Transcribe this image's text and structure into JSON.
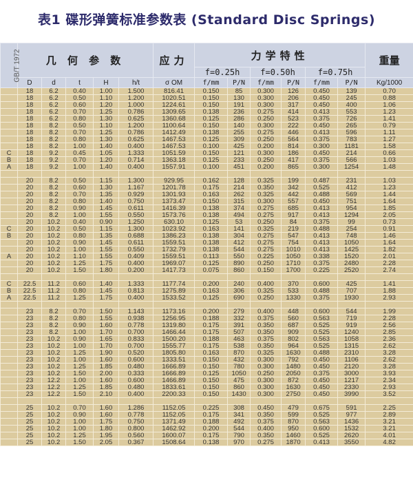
{
  "title": "表1  碟形弹簧标准参数表 (Standard Disc Springs)",
  "header": {
    "standard": "GB/T 1972",
    "geometry": "几 何 参 数",
    "stress": "应力",
    "mechanics": "力学特性",
    "weight": "重量",
    "f_groups": [
      "f=0.25h",
      "f=0.50h",
      "f=0.75h"
    ],
    "columns": [
      "D",
      "d",
      "t",
      "H",
      "h/t",
      "σ OM",
      "f/mm",
      "P/N",
      "f/mm",
      "P/N",
      "f/mm",
      "P/N",
      "Kg/1000"
    ]
  },
  "colors": {
    "title": "#2d2b6b",
    "header_bg": "#cdd3e2",
    "body_bg": "#dccb9f"
  },
  "rows": [
    [
      "",
      "18",
      "6.2",
      "0.40",
      "1.00",
      "1.500",
      "816.41",
      "0.150",
      "85",
      "0.300",
      "126",
      "0.450",
      "139",
      "0.70"
    ],
    [
      "",
      "18",
      "6.2",
      "0.50",
      "1.10",
      "1.200",
      "1020.51",
      "0.150",
      "130",
      "0.300",
      "206",
      "0.450",
      "245",
      "0.88"
    ],
    [
      "",
      "18",
      "6.2",
      "0.60",
      "1.20",
      "1.000",
      "1224.61",
      "0.150",
      "191",
      "0.300",
      "317",
      "0.450",
      "400",
      "1.06"
    ],
    [
      "",
      "18",
      "6.2",
      "0.70",
      "1.25",
      "0.786",
      "1309.65",
      "0.138",
      "236",
      "0.275",
      "414",
      "0.413",
      "553",
      "1.23"
    ],
    [
      "",
      "18",
      "6.2",
      "0.80",
      "1.30",
      "0.625",
      "1360.68",
      "0.125",
      "286",
      "0.250",
      "523",
      "0.375",
      "726",
      "1.41"
    ],
    [
      "",
      "18",
      "8.2",
      "0.50",
      "1.10",
      "1.200",
      "1100.64",
      "0.150",
      "140",
      "0.300",
      "222",
      "0.450",
      "265",
      "0.79"
    ],
    [
      "",
      "18",
      "8.2",
      "0.70",
      "1.25",
      "0.786",
      "1412.49",
      "0.138",
      "255",
      "0.275",
      "446",
      "0.413",
      "596",
      "1.11"
    ],
    [
      "",
      "18",
      "8.2",
      "0.80",
      "1.30",
      "0.625",
      "1467.53",
      "0.125",
      "309",
      "0.250",
      "564",
      "0.375",
      "783",
      "1.27"
    ],
    [
      "",
      "18",
      "8.2",
      "1.00",
      "1.40",
      "0.400",
      "1467.53",
      "0.100",
      "425",
      "0.200",
      "814",
      "0.300",
      "1181",
      "1.58"
    ],
    [
      "C",
      "18",
      "9.2",
      "0.45",
      "1.05",
      "1.333",
      "1051.59",
      "0.150",
      "121",
      "0.300",
      "186",
      "0.450",
      "214",
      "0.66"
    ],
    [
      "B",
      "18",
      "9.2",
      "0.70",
      "1.20",
      "0.714",
      "1363.18",
      "0.125",
      "233",
      "0.250",
      "417",
      "0.375",
      "566",
      "1.03"
    ],
    [
      "A",
      "18",
      "9.2",
      "1.00",
      "1.40",
      "0.400",
      "1557.91",
      "0.100",
      "451",
      "0.200",
      "865",
      "0.300",
      "1254",
      "1.48"
    ],
    [],
    [
      "",
      "20",
      "8.2",
      "0.50",
      "1.15",
      "1.300",
      "929.95",
      "0.162",
      "128",
      "0.325",
      "199",
      "0.487",
      "231",
      "1.03"
    ],
    [
      "",
      "20",
      "8.2",
      "0.60",
      "1.30",
      "1.167",
      "1201.78",
      "0.175",
      "214",
      "0.350",
      "342",
      "0.525",
      "412",
      "1.23"
    ],
    [
      "",
      "20",
      "8.2",
      "0.70",
      "1.35",
      "0.929",
      "1301.93",
      "0.163",
      "262",
      "0.325",
      "442",
      "0.488",
      "569",
      "1.44"
    ],
    [
      "",
      "20",
      "8.2",
      "0.80",
      "1.40",
      "0.750",
      "1373.47",
      "0.150",
      "315",
      "0.300",
      "557",
      "0.450",
      "751",
      "1.64"
    ],
    [
      "",
      "20",
      "8.2",
      "0.90",
      "1.45",
      "0.611",
      "1416.39",
      "0.138",
      "374",
      "0.275",
      "685",
      "0.413",
      "954",
      "1.85"
    ],
    [
      "",
      "20",
      "8.2",
      "1.00",
      "1.55",
      "0.550",
      "1573.76",
      "0.138",
      "494",
      "0.275",
      "917",
      "0.413",
      "1294",
      "2.05"
    ],
    [
      "",
      "20",
      "10.2",
      "0.40",
      "0.90",
      "1.250",
      "630.10",
      "0.125",
      "53",
      "0.250",
      "84",
      "0.375",
      "99",
      "0.73"
    ],
    [
      "C",
      "20",
      "10.2",
      "0.50",
      "1.15",
      "1.300",
      "1023.92",
      "0.163",
      "141",
      "0.325",
      "219",
      "0.488",
      "254",
      "0.91"
    ],
    [
      "B",
      "20",
      "10.2",
      "0.80",
      "1.35",
      "0.688",
      "1386.23",
      "0.138",
      "304",
      "0.275",
      "547",
      "0.413",
      "748",
      "1.46"
    ],
    [
      "",
      "20",
      "10.2",
      "0.90",
      "1.45",
      "0.611",
      "1559.51",
      "0.138",
      "412",
      "0.275",
      "754",
      "0.413",
      "1050",
      "1.64"
    ],
    [
      "",
      "20",
      "10.2",
      "1.00",
      "1.55",
      "0.550",
      "1732.79",
      "0.138",
      "544",
      "0.275",
      "1010",
      "0.413",
      "1425",
      "1.82"
    ],
    [
      "A",
      "20",
      "10.2",
      "1.10",
      "1.55",
      "0.409",
      "1559.51",
      "0.113",
      "550",
      "0.225",
      "1050",
      "0.338",
      "1520",
      "2.01"
    ],
    [
      "",
      "20",
      "10.2",
      "1.25",
      "1.75",
      "0.400",
      "1969.07",
      "0.125",
      "890",
      "0.250",
      "1710",
      "0.375",
      "2480",
      "2.28"
    ],
    [
      "",
      "20",
      "10.2",
      "1.50",
      "1.80",
      "0.200",
      "1417.73",
      "0.075",
      "860",
      "0.150",
      "1700",
      "0.225",
      "2520",
      "2.74"
    ],
    [],
    [
      "C",
      "22.5",
      "11.2",
      "0.60",
      "1.40",
      "1.333",
      "1177.74",
      "0.200",
      "240",
      "0.400",
      "370",
      "0.600",
      "425",
      "1.41"
    ],
    [
      "B",
      "22.5",
      "11.2",
      "0.80",
      "1.45",
      "0.813",
      "1275.89",
      "0.163",
      "306",
      "0.325",
      "533",
      "0.488",
      "707",
      "1.88"
    ],
    [
      "A",
      "22.5",
      "11.2",
      "1.25",
      "1.75",
      "0.400",
      "1533.52",
      "0.125",
      "690",
      "0.250",
      "1330",
      "0.375",
      "1930",
      "2.93"
    ],
    [],
    [
      "",
      "23",
      "8.2",
      "0.70",
      "1.50",
      "1.143",
      "1173.16",
      "0.200",
      "279",
      "0.400",
      "448",
      "0.600",
      "544",
      "1.99"
    ],
    [
      "",
      "23",
      "8.2",
      "0.80",
      "1.55",
      "0.938",
      "1256.95",
      "0.188",
      "332",
      "0.375",
      "560",
      "0.563",
      "719",
      "2.28"
    ],
    [
      "",
      "23",
      "8.2",
      "0.90",
      "1.60",
      "0.778",
      "1319.80",
      "0.175",
      "391",
      "0.350",
      "687",
      "0.525",
      "919",
      "2.56"
    ],
    [
      "",
      "23",
      "8.2",
      "1.00",
      "1.70",
      "0.700",
      "1466.44",
      "0.175",
      "507",
      "0.350",
      "909",
      "0.525",
      "1240",
      "2.85"
    ],
    [
      "",
      "23",
      "10.2",
      "0.90",
      "1.65",
      "0.833",
      "1500.20",
      "0.188",
      "463",
      "0.375",
      "802",
      "0.563",
      "1058",
      "2.36"
    ],
    [
      "",
      "23",
      "10.2",
      "1.00",
      "1.70",
      "0.700",
      "1555.77",
      "0.175",
      "538",
      "0.350",
      "964",
      "0.525",
      "1315",
      "2.62"
    ],
    [
      "",
      "23",
      "10.2",
      "1.25",
      "1.90",
      "0.520",
      "1805.80",
      "0.163",
      "870",
      "0.325",
      "1630",
      "0.488",
      "2310",
      "3.28"
    ],
    [
      "",
      "23",
      "10.2",
      "1.00",
      "1.60",
      "0.600",
      "1333.51",
      "0.150",
      "432",
      "0.300",
      "792",
      "0.450",
      "1106",
      "2.62"
    ],
    [
      "",
      "23",
      "10.2",
      "1.25",
      "1.85",
      "0.480",
      "1666.89",
      "0.150",
      "780",
      "0.300",
      "1480",
      "0.450",
      "2120",
      "3.28"
    ],
    [
      "",
      "23",
      "10.2",
      "1.50",
      "2.00",
      "0.333",
      "1666.89",
      "0.125",
      "1050",
      "0.250",
      "2050",
      "0.375",
      "3000",
      "3.93"
    ],
    [
      "",
      "23",
      "12.2",
      "1.00",
      "1.60",
      "0.600",
      "1466.89",
      "0.150",
      "475",
      "0.300",
      "872",
      "0.450",
      "1217",
      "2.34"
    ],
    [
      "",
      "23",
      "12.2",
      "1.25",
      "1.85",
      "0.480",
      "1833.61",
      "0.150",
      "860",
      "0.300",
      "1630",
      "0.450",
      "2330",
      "2.93"
    ],
    [
      "",
      "23",
      "12.2",
      "1.50",
      "2.10",
      "0.400",
      "2200.33",
      "0.150",
      "1430",
      "0.300",
      "2750",
      "0.450",
      "3990",
      "3.52"
    ],
    [],
    [
      "",
      "25",
      "10.2",
      "0.70",
      "1.60",
      "1.286",
      "1152.05",
      "0.225",
      "308",
      "0.450",
      "479",
      "0.675",
      "591",
      "2.25"
    ],
    [
      "",
      "25",
      "10.2",
      "0.90",
      "1.60",
      "0.778",
      "1152.05",
      "0.175",
      "341",
      "0.350",
      "599",
      "0.525",
      "977",
      "2.89"
    ],
    [
      "",
      "25",
      "10.2",
      "1.00",
      "1.75",
      "0.750",
      "1371.49",
      "0.188",
      "492",
      "0.375",
      "870",
      "0.563",
      "1436",
      "3.21"
    ],
    [
      "",
      "25",
      "10.2",
      "1.00",
      "1.80",
      "0.800",
      "1462.92",
      "0.200",
      "544",
      "0.400",
      "950",
      "0.600",
      "1532",
      "3.21"
    ],
    [
      "",
      "25",
      "10.2",
      "1.25",
      "1.95",
      "0.560",
      "1600.07",
      "0.175",
      "790",
      "0.350",
      "1460",
      "0.525",
      "2620",
      "4.01"
    ],
    [
      "",
      "25",
      "10.2",
      "1.50",
      "2.05",
      "0.367",
      "1508.64",
      "0.138",
      "970",
      "0.275",
      "1870",
      "0.413",
      "3550",
      "4.82"
    ]
  ]
}
